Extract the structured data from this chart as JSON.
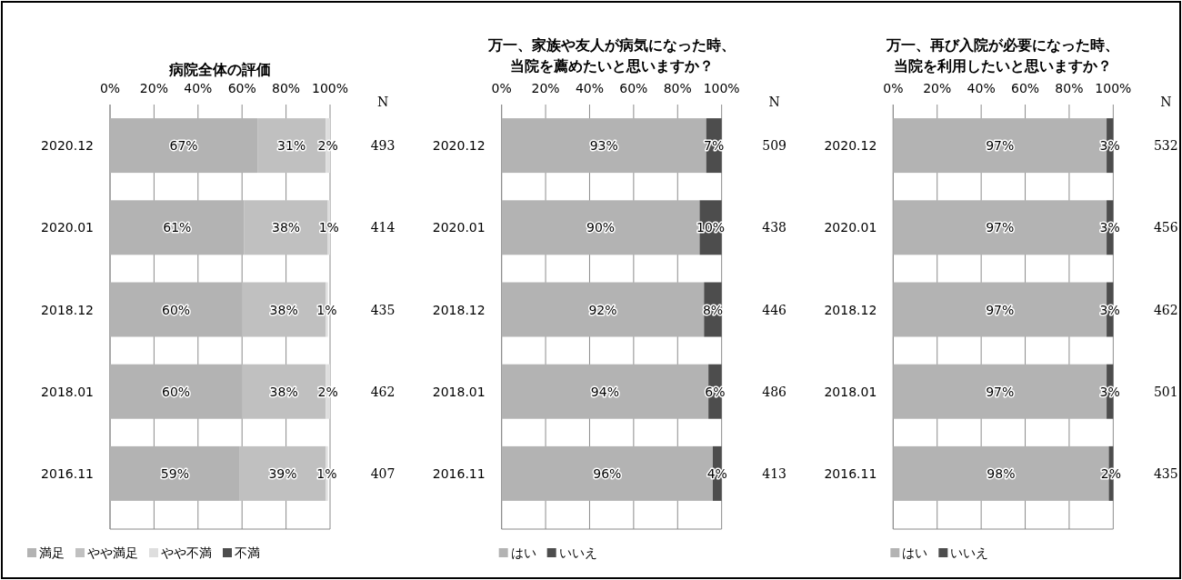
{
  "chart_data": [
    {
      "type": "bar",
      "orientation": "horizontal",
      "stacked": true,
      "title": "病院全体の評価",
      "categories": [
        "2020.12",
        "2020.01",
        "2018.12",
        "2018.01",
        "2016.11"
      ],
      "series": [
        {
          "name": "満足",
          "color": "#b3b3b3",
          "values": [
            67,
            61,
            60,
            60,
            59
          ],
          "value_labels": [
            "67%",
            "61%",
            "60%",
            "60%",
            "59%"
          ]
        },
        {
          "name": "やや満足",
          "color": "#c0c0c0",
          "values": [
            31,
            38,
            38,
            38,
            39
          ],
          "value_labels": [
            "31%",
            "38%",
            "38%",
            "38%",
            "39%"
          ]
        },
        {
          "name": "やや不満",
          "color": "#dedede",
          "values": [
            2,
            1,
            1,
            2,
            1
          ],
          "value_labels": [
            "2%",
            "1%",
            "1%",
            "2%",
            "1%"
          ]
        },
        {
          "name": "不満",
          "color": "#4d4d4d",
          "values": [
            0,
            0,
            0,
            0,
            0
          ],
          "value_labels": [
            null,
            null,
            null,
            null,
            null
          ]
        }
      ],
      "xlim": [
        0,
        100
      ],
      "xticks": [
        {
          "value": 0,
          "label": "0%"
        },
        {
          "value": 20,
          "label": "20%"
        },
        {
          "value": 40,
          "label": "40%"
        },
        {
          "value": 60,
          "label": "60%"
        },
        {
          "value": 80,
          "label": "80%"
        },
        {
          "value": 100,
          "label": "100%"
        }
      ],
      "grid": "x",
      "legend": "bottom",
      "annotations": [
        "N",
        "493",
        "414",
        "435",
        "462",
        "407"
      ]
    },
    {
      "type": "bar",
      "orientation": "horizontal",
      "stacked": true,
      "title": "万一、家族や友人が病気になった時、当院を薦めたいと思いますか？",
      "categories": [
        "2020.12",
        "2020.01",
        "2018.12",
        "2018.01",
        "2016.11"
      ],
      "series": [
        {
          "name": "はい",
          "color": "#b3b3b3",
          "values": [
            93,
            90,
            92,
            94,
            96
          ],
          "value_labels": [
            "93%",
            "90%",
            "92%",
            "94%",
            "96%"
          ]
        },
        {
          "name": "いいえ",
          "color": "#4d4d4d",
          "values": [
            7,
            10,
            8,
            6,
            4
          ],
          "value_labels": [
            "7%",
            "10%",
            "8%",
            "6%",
            "4%"
          ]
        }
      ],
      "xlim": [
        0,
        100
      ],
      "xticks": [
        {
          "value": 0,
          "label": "0%"
        },
        {
          "value": 20,
          "label": "20%"
        },
        {
          "value": 40,
          "label": "40%"
        },
        {
          "value": 60,
          "label": "60%"
        },
        {
          "value": 80,
          "label": "80%"
        },
        {
          "value": 100,
          "label": "100%"
        }
      ],
      "grid": "x",
      "legend": "bottom",
      "annotations": [
        "N",
        "509",
        "438",
        "446",
        "486",
        "413"
      ]
    },
    {
      "type": "bar",
      "orientation": "horizontal",
      "stacked": true,
      "title": "万一、再び入院が必要になった時、当院を利用したいと思いますか？",
      "categories": [
        "2020.12",
        "2020.01",
        "2018.12",
        "2018.01",
        "2016.11"
      ],
      "series": [
        {
          "name": "はい",
          "color": "#b3b3b3",
          "values": [
            97,
            97,
            97,
            97,
            98
          ],
          "value_labels": [
            "97%",
            "97%",
            "97%",
            "97%",
            "98%"
          ]
        },
        {
          "name": "いいえ",
          "color": "#4d4d4d",
          "values": [
            3,
            3,
            3,
            3,
            2
          ],
          "value_labels": [
            "3%",
            "3%",
            "3%",
            "3%",
            "2%"
          ]
        }
      ],
      "xlim": [
        0,
        100
      ],
      "xticks": [
        {
          "value": 0,
          "label": "0%"
        },
        {
          "value": 20,
          "label": "20%"
        },
        {
          "value": 40,
          "label": "40%"
        },
        {
          "value": 60,
          "label": "60%"
        },
        {
          "value": 80,
          "label": "80%"
        },
        {
          "value": 100,
          "label": "100%"
        }
      ],
      "grid": "x",
      "legend": "bottom",
      "annotations": [
        "N",
        "532",
        "456",
        "462",
        "501",
        "435"
      ]
    }
  ]
}
